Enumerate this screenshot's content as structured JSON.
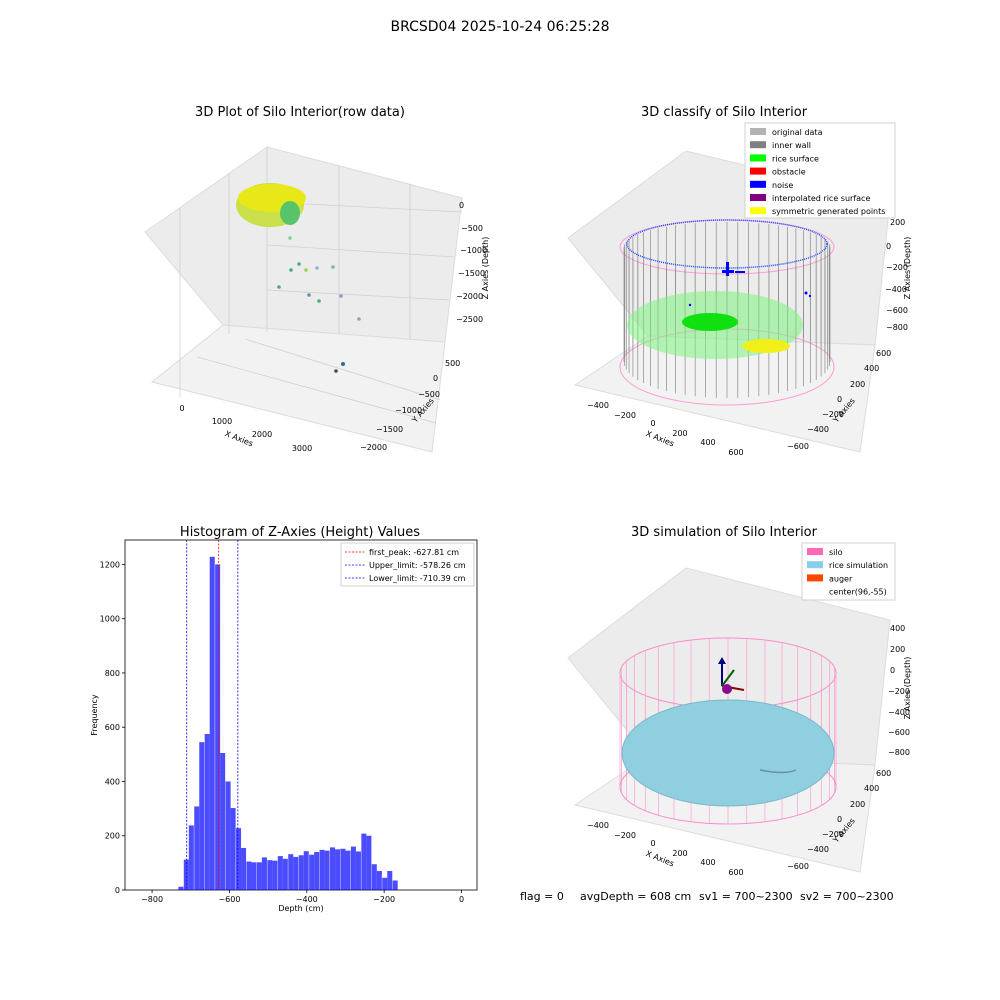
{
  "suptitle": "BRCSD04 2025-10-24 06:25:28",
  "panels": {
    "raw": {
      "title": "3D Plot of Silo Interior(row data)",
      "xlabel": "X Axies",
      "ylabel": "Y Axies",
      "zlabel": "Z Axies (Depth)",
      "xticks": [
        "0",
        "1000",
        "2000",
        "3000"
      ],
      "yticks": [
        "500",
        "0",
        "−500",
        "−1000",
        "−1500",
        "−2000"
      ],
      "zticks": [
        "0",
        "−500",
        "−1000",
        "−1500",
        "−2000",
        "−2500"
      ]
    },
    "classify": {
      "title": "3D classify of Silo Interior",
      "xlabel": "X Axies",
      "ylabel": "Y Axies",
      "zlabel": "Z Axies (Depth)",
      "xticks": [
        "−400",
        "−200",
        "0",
        "200",
        "400",
        "600"
      ],
      "yticks": [
        "600",
        "400",
        "200",
        "0",
        "−200",
        "−400",
        "−600"
      ],
      "zticks": [
        "200",
        "0",
        "−200",
        "−400",
        "−600",
        "−800"
      ],
      "legend": [
        {
          "label": "original data",
          "color": "#b3b3b3"
        },
        {
          "label": "inner wall",
          "color": "#808080"
        },
        {
          "label": "rice surface",
          "color": "#00ff00"
        },
        {
          "label": "obstacle",
          "color": "#ff0000"
        },
        {
          "label": "noise",
          "color": "#0000ff"
        },
        {
          "label": "interpolated rice surface",
          "color": "#800080"
        },
        {
          "label": "symmetric generated points",
          "color": "#ffff00"
        }
      ]
    },
    "simulation": {
      "title": "3D simulation of Silo Interior",
      "xlabel": "X Axies",
      "ylabel": "Y Axies",
      "zlabel": "Z Axies (Depth)",
      "xticks": [
        "−400",
        "−200",
        "0",
        "200",
        "400",
        "600"
      ],
      "yticks": [
        "600",
        "400",
        "200",
        "0",
        "−200",
        "−400",
        "−600"
      ],
      "zticks": [
        "400",
        "200",
        "0",
        "−200",
        "−400",
        "−600",
        "−800"
      ],
      "legend": [
        {
          "label": "silo",
          "color": "#ff69b4"
        },
        {
          "label": "rice simulation",
          "color": "#87ceeb"
        },
        {
          "label": "auger",
          "color": "#ff4500"
        },
        {
          "label": "center(96,-55)",
          "color": "#ffffff"
        }
      ]
    }
  },
  "chart_data": [
    {
      "type": "bar",
      "title": "Histogram of Z-Axies (Height) Values",
      "xlabel": "Depth (cm)",
      "ylabel": "Frequency",
      "xlim": [
        -870,
        40
      ],
      "ylim": [
        0,
        1290
      ],
      "xticks": [
        -800,
        -600,
        -400,
        -200,
        0
      ],
      "yticks": [
        0,
        200,
        400,
        600,
        800,
        1000,
        1200
      ],
      "bin_width": 13.5,
      "bar_color": "#0000ff",
      "bar_alpha": 0.7,
      "bins": [
        {
          "x": -732,
          "y": 12
        },
        {
          "x": -718,
          "y": 112
        },
        {
          "x": -705,
          "y": 238
        },
        {
          "x": -691,
          "y": 308
        },
        {
          "x": -678,
          "y": 545
        },
        {
          "x": -664,
          "y": 575
        },
        {
          "x": -651,
          "y": 1228
        },
        {
          "x": -637,
          "y": 1200
        },
        {
          "x": -624,
          "y": 505
        },
        {
          "x": -610,
          "y": 400
        },
        {
          "x": -597,
          "y": 302
        },
        {
          "x": -583,
          "y": 228
        },
        {
          "x": -570,
          "y": 155
        },
        {
          "x": -556,
          "y": 105
        },
        {
          "x": -543,
          "y": 102
        },
        {
          "x": -529,
          "y": 102
        },
        {
          "x": -516,
          "y": 120
        },
        {
          "x": -502,
          "y": 110
        },
        {
          "x": -489,
          "y": 108
        },
        {
          "x": -475,
          "y": 125
        },
        {
          "x": -462,
          "y": 115
        },
        {
          "x": -448,
          "y": 132
        },
        {
          "x": -435,
          "y": 122
        },
        {
          "x": -421,
          "y": 128
        },
        {
          "x": -408,
          "y": 143
        },
        {
          "x": -394,
          "y": 130
        },
        {
          "x": -381,
          "y": 140
        },
        {
          "x": -367,
          "y": 148
        },
        {
          "x": -354,
          "y": 145
        },
        {
          "x": -340,
          "y": 157
        },
        {
          "x": -327,
          "y": 150
        },
        {
          "x": -313,
          "y": 152
        },
        {
          "x": -300,
          "y": 145
        },
        {
          "x": -286,
          "y": 160
        },
        {
          "x": -273,
          "y": 142
        },
        {
          "x": -259,
          "y": 208
        },
        {
          "x": -246,
          "y": 200
        },
        {
          "x": -232,
          "y": 95
        },
        {
          "x": -219,
          "y": 70
        },
        {
          "x": -205,
          "y": 45
        },
        {
          "x": -192,
          "y": 70
        },
        {
          "x": -178,
          "y": 35
        }
      ],
      "vlines": [
        {
          "x": -627.81,
          "label": "first_peak: -627.81 cm",
          "color": "#ff0000"
        },
        {
          "x": -578.26,
          "label": "Upper_limit: -578.26 cm",
          "color": "#0000ff"
        },
        {
          "x": -710.39,
          "label": "Lower_limit: -710.39 cm",
          "color": "#0000ff"
        }
      ],
      "legend_position": "upper right"
    }
  ],
  "footer": {
    "flag": "flag = 0",
    "avg": "avgDepth = 608 cm",
    "sv1": "sv1 = 700~2300",
    "sv2": "sv2 = 700~2300"
  }
}
